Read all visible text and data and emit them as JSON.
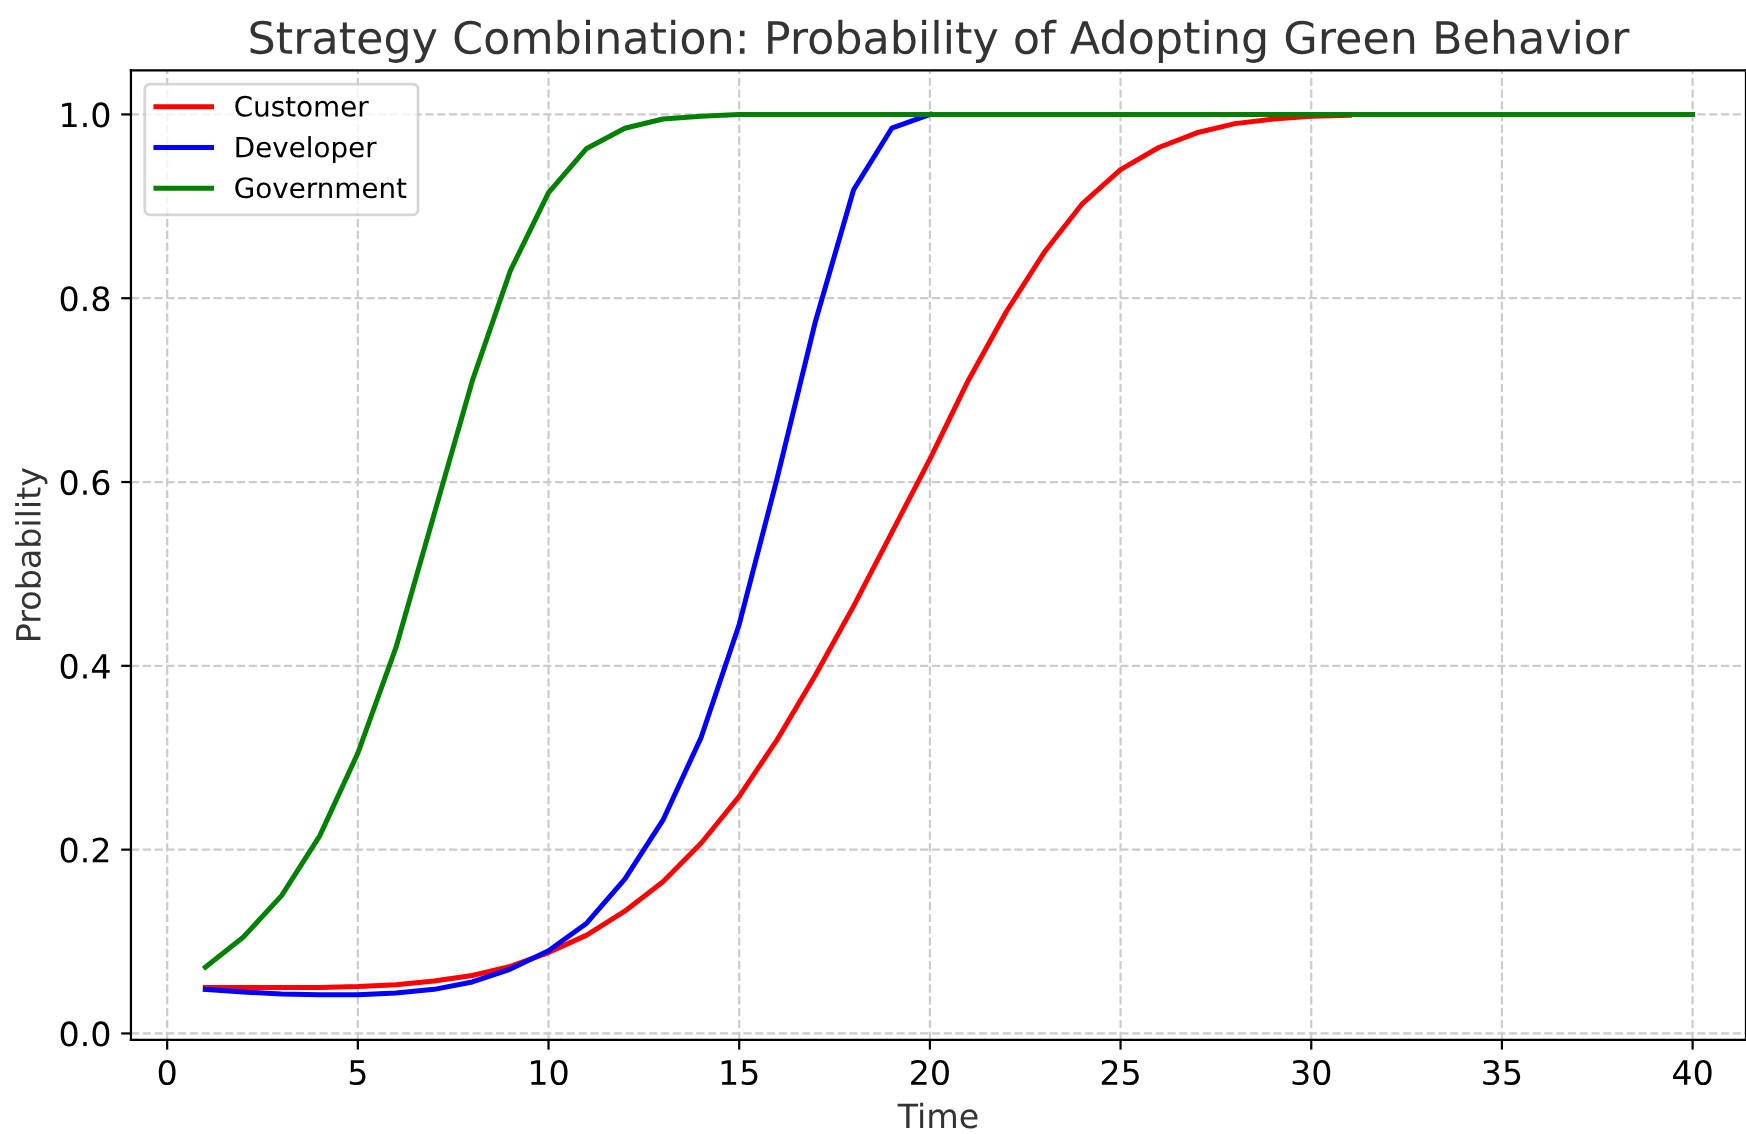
{
  "chart_data": {
    "type": "line",
    "title": "Strategy Combination: Probability of Adopting Green Behavior",
    "xlabel": "Time",
    "ylabel": "Probability",
    "x": [
      1,
      2,
      3,
      4,
      5,
      6,
      7,
      8,
      9,
      10,
      11,
      12,
      13,
      14,
      15,
      16,
      17,
      18,
      19,
      20,
      21,
      22,
      23,
      24,
      25,
      26,
      27,
      28,
      29,
      30,
      31,
      32,
      33,
      34,
      35,
      36,
      37,
      38,
      39,
      40
    ],
    "series": [
      {
        "name": "Customer",
        "color": "#ff0000",
        "values": [
          0.05,
          0.05,
          0.05,
          0.05,
          0.051,
          0.053,
          0.057,
          0.063,
          0.073,
          0.088,
          0.107,
          0.133,
          0.165,
          0.207,
          0.258,
          0.32,
          0.39,
          0.465,
          0.545,
          0.625,
          0.71,
          0.785,
          0.85,
          0.903,
          0.94,
          0.964,
          0.98,
          0.99,
          0.995,
          0.998,
          0.999,
          null,
          null,
          null,
          null,
          null,
          null,
          null,
          null,
          null
        ]
      },
      {
        "name": "Developer",
        "color": "#0000ff",
        "values": [
          0.048,
          0.045,
          0.043,
          0.042,
          0.042,
          0.044,
          0.048,
          0.056,
          0.07,
          0.09,
          0.12,
          0.168,
          0.232,
          0.322,
          0.445,
          0.605,
          0.775,
          0.918,
          0.985,
          1.0,
          null,
          null,
          null,
          null,
          null,
          null,
          null,
          null,
          null,
          null,
          null,
          null,
          null,
          null,
          null,
          null,
          null,
          null,
          null,
          null
        ]
      },
      {
        "name": "Government",
        "color": "#008000",
        "values": [
          0.072,
          0.105,
          0.15,
          0.215,
          0.305,
          0.42,
          0.565,
          0.71,
          0.83,
          0.915,
          0.963,
          0.985,
          0.995,
          0.998,
          1.0,
          1.0,
          1.0,
          1.0,
          1.0,
          1.0,
          1.0,
          1.0,
          1.0,
          1.0,
          1.0,
          1.0,
          1.0,
          1.0,
          1.0,
          1.0,
          1.0,
          1.0,
          1.0,
          1.0,
          1.0,
          1.0,
          1.0,
          1.0,
          1.0,
          1.0
        ]
      }
    ],
    "xlim": [
      -0.95,
      41.4
    ],
    "ylim": [
      -0.007,
      1.048
    ],
    "xticks": [
      0,
      5,
      10,
      15,
      20,
      25,
      30,
      35,
      40
    ],
    "yticks": [
      {
        "value": 0,
        "label": "0.0"
      },
      {
        "value": 0.2,
        "label": "0.2"
      },
      {
        "value": 0.4,
        "label": "0.4"
      },
      {
        "value": 0.6,
        "label": "0.6"
      },
      {
        "value": 0.8,
        "label": "0.8"
      },
      {
        "value": 1.0,
        "label": "1.0"
      }
    ],
    "grid": true,
    "legend": "top left",
    "line_style": "solid",
    "marker": "none"
  }
}
